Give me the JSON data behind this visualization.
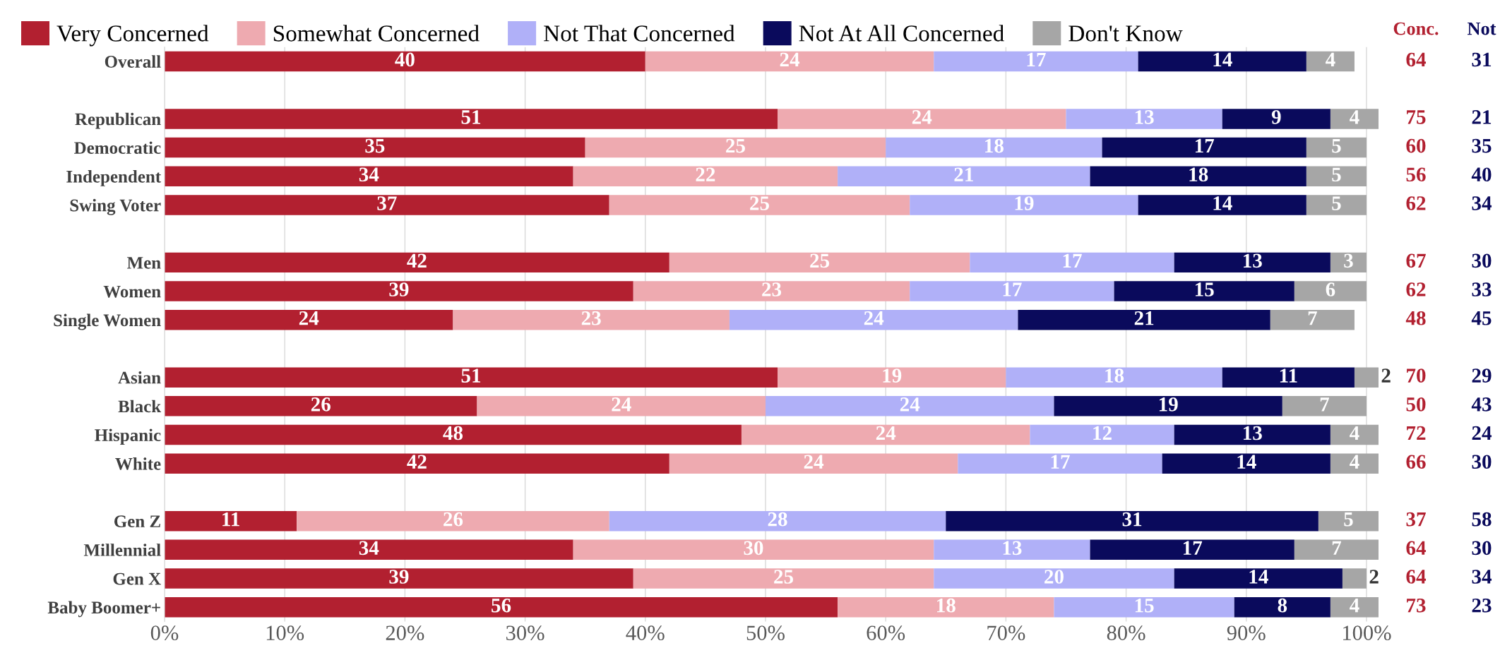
{
  "chart_data": {
    "type": "bar",
    "orientation": "horizontal",
    "stacked": true,
    "data_labels": true,
    "legend": "top",
    "grid": "x",
    "categories": [
      "Overall",
      null,
      "Republican",
      "Democratic",
      "Independent",
      "Swing Voter",
      null,
      "Men",
      "Women",
      "Single Women",
      null,
      "Asian",
      "Black",
      "Hispanic",
      "White",
      null,
      "Gen Z",
      "Millennial",
      "Gen X",
      "Baby Boomer+"
    ],
    "xlim": [
      0,
      101
    ],
    "xticks": [
      {
        "value": 0,
        "label": "0%"
      },
      {
        "value": 10,
        "label": "10%"
      },
      {
        "value": 20,
        "label": "20%"
      },
      {
        "value": 30,
        "label": "30%"
      },
      {
        "value": 40,
        "label": "40%"
      },
      {
        "value": 50,
        "label": "50%"
      },
      {
        "value": 60,
        "label": "60%"
      },
      {
        "value": 70,
        "label": "70%"
      },
      {
        "value": 80,
        "label": "80%"
      },
      {
        "value": 90,
        "label": "90%"
      },
      {
        "value": 100,
        "label": "100%"
      }
    ],
    "series": [
      {
        "name": "Very Concerned",
        "color": "#b22030",
        "values": [
          40,
          null,
          51,
          35,
          34,
          37,
          null,
          42,
          39,
          24,
          null,
          51,
          26,
          48,
          42,
          null,
          11,
          34,
          39,
          56
        ]
      },
      {
        "name": "Somewhat Concerned",
        "color": "#eeaab0",
        "values": [
          24,
          null,
          24,
          25,
          22,
          25,
          null,
          25,
          23,
          23,
          null,
          19,
          24,
          24,
          24,
          null,
          26,
          30,
          25,
          18
        ]
      },
      {
        "name": "Not That Concerned",
        "color": "#b0b0f8",
        "values": [
          17,
          null,
          13,
          18,
          21,
          19,
          null,
          17,
          17,
          24,
          null,
          18,
          24,
          12,
          17,
          null,
          28,
          13,
          20,
          15
        ]
      },
      {
        "name": "Not At All Concerned",
        "color": "#0a0a5c",
        "values": [
          14,
          null,
          9,
          17,
          18,
          14,
          null,
          13,
          15,
          21,
          null,
          11,
          19,
          13,
          14,
          null,
          31,
          17,
          14,
          8
        ]
      },
      {
        "name": "Don't Know",
        "color": "#a6a6a6",
        "values": [
          4,
          null,
          4,
          5,
          5,
          5,
          null,
          3,
          6,
          7,
          null,
          2,
          7,
          4,
          4,
          null,
          5,
          7,
          2,
          4
        ]
      }
    ],
    "annotations": [
      "Conc.",
      "Not",
      "64",
      "31",
      "75",
      "21",
      "60",
      "35",
      "56",
      "40",
      "62",
      "34",
      "67",
      "30",
      "62",
      "33",
      "48",
      "45",
      "70",
      "29",
      "50",
      "43",
      "72",
      "24",
      "66",
      "30",
      "37",
      "58",
      "64",
      "30",
      "64",
      "34",
      "73",
      "23"
    ]
  }
}
